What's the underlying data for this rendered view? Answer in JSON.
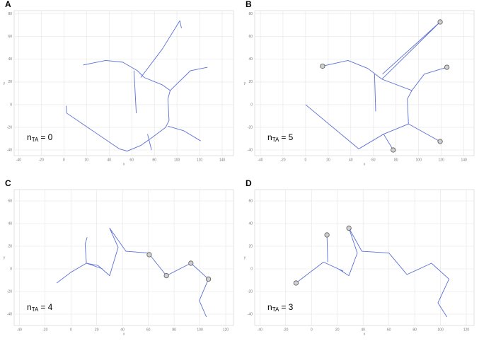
{
  "chart_data": [
    {
      "type": "line",
      "panel_label": "A",
      "x_label": "x",
      "y_label": "y",
      "annotation": {
        "base": "n",
        "subscript": "TA",
        "text": "= 0"
      },
      "xlim": [
        -44,
        150
      ],
      "ylim": [
        -45,
        83
      ],
      "xticks": [
        -40,
        -20,
        0,
        20,
        40,
        60,
        80,
        100,
        120,
        140
      ],
      "yticks": [
        -40,
        -20,
        0,
        20,
        40,
        60,
        80
      ],
      "grid": true,
      "series": [
        {
          "color": "#5b6fd6",
          "x": [
            2,
            2.5,
            49,
            56,
            68,
            78,
            90,
            93,
            92,
            94,
            112,
            127,
            null,
            17,
            37,
            52,
            65,
            71,
            87,
            94,
            null,
            68,
            87,
            102.5,
            104,
            null,
            62,
            64,
            null,
            92,
            106,
            121,
            null,
            74,
            77.5
          ],
          "y": [
            -1,
            -7.5,
            -39,
            -41,
            -36,
            -29,
            -20,
            -14,
            5,
            12.5,
            30,
            33,
            null,
            35,
            39,
            37.5,
            30,
            24,
            17.5,
            12.5,
            null,
            24,
            49,
            74,
            67.5,
            null,
            30,
            -7.5,
            null,
            -19,
            -23,
            -32,
            null,
            -26,
            -40
          ]
        }
      ]
    },
    {
      "type": "line",
      "panel_label": "B",
      "x_label": "x",
      "y_label": "y",
      "annotation": {
        "base": "n",
        "subscript": "TA",
        "text": "= 5"
      },
      "xlim": [
        -45,
        149
      ],
      "ylim": [
        -45,
        83
      ],
      "xticks": [
        -40,
        -20,
        0,
        20,
        40,
        60,
        80,
        100,
        120,
        140
      ],
      "yticks": [
        -40,
        -20,
        0,
        20,
        40,
        60,
        80
      ],
      "grid": true,
      "series": [
        {
          "color": "#5b6fd6",
          "x": [
            0,
            47,
            69,
            91,
            90,
            94,
            105,
            125,
            null,
            15,
            37.5,
            55,
            67.5,
            94,
            null,
            67.5,
            119,
            null,
            68,
            119,
            null,
            61,
            62,
            null,
            91,
            119,
            null,
            69,
            77.5
          ],
          "y": [
            0,
            -39,
            -26,
            -17,
            5,
            12.5,
            27,
            33,
            null,
            34,
            39,
            32,
            22.5,
            12.5,
            null,
            22.5,
            73,
            null,
            27,
            73,
            null,
            27,
            -6,
            null,
            -17,
            -32.5,
            null,
            -26,
            -40
          ]
        }
      ],
      "markers": {
        "x": [
          15,
          119,
          125,
          119,
          77.5
        ],
        "y": [
          34,
          73,
          33,
          -32.5,
          -40
        ]
      }
    },
    {
      "type": "line",
      "panel_label": "C",
      "x_label": "x",
      "y_label": "y",
      "annotation": {
        "base": "n",
        "subscript": "TA",
        "text": "= 4"
      },
      "xlim": [
        -44,
        126
      ],
      "ylim": [
        -50,
        70
      ],
      "xticks": [
        -40,
        -20,
        0,
        20,
        40,
        60,
        80,
        100,
        120
      ],
      "yticks": [
        -40,
        -20,
        0,
        20,
        40,
        60
      ],
      "grid": true,
      "series": [
        {
          "color": "#5b6fd6",
          "x": [
            -11,
            0,
            12,
            24.6,
            null,
            12,
            11,
            12.6,
            null,
            12,
            21,
            30,
            36.6,
            30,
            42.6,
            60,
            74,
            93,
            106.6,
            99.5,
            105
          ],
          "y": [
            -12.5,
            -3,
            5,
            0,
            null,
            5,
            22,
            28,
            null,
            5,
            3,
            -6,
            19,
            36,
            15.6,
            14,
            -6,
            5,
            -9,
            -28,
            -42.5
          ]
        }
      ],
      "markers": {
        "x": [
          60.7,
          74,
          93,
          106.6
        ],
        "y": [
          12.5,
          -6,
          5,
          -9
        ]
      }
    },
    {
      "type": "line",
      "panel_label": "D",
      "x_label": "x",
      "y_label": "y",
      "annotation": {
        "base": "n",
        "subscript": "TA",
        "text": "= 3"
      },
      "xlim": [
        -44,
        126
      ],
      "ylim": [
        -50,
        70
      ],
      "xticks": [
        -40,
        -20,
        0,
        20,
        40,
        60,
        80,
        100,
        120
      ],
      "yticks": [
        -40,
        -20,
        0,
        20,
        40,
        60
      ],
      "grid": true,
      "series": [
        {
          "color": "#5b6fd6",
          "x": [
            -12,
            9.3,
            24.6,
            null,
            12,
            12.6,
            null,
            9.3,
            20.8,
            29,
            35.5,
            29,
            39,
            60,
            74,
            93,
            106.6,
            98,
            105
          ],
          "y": [
            -12.5,
            6,
            -2,
            null,
            30,
            6,
            null,
            6,
            0,
            -6,
            14,
            36,
            15.6,
            14,
            -5,
            5,
            -9,
            -30,
            -42.5
          ]
        }
      ],
      "markers": {
        "x": [
          -12,
          12,
          29
        ],
        "y": [
          -12.5,
          30,
          36
        ]
      }
    }
  ]
}
